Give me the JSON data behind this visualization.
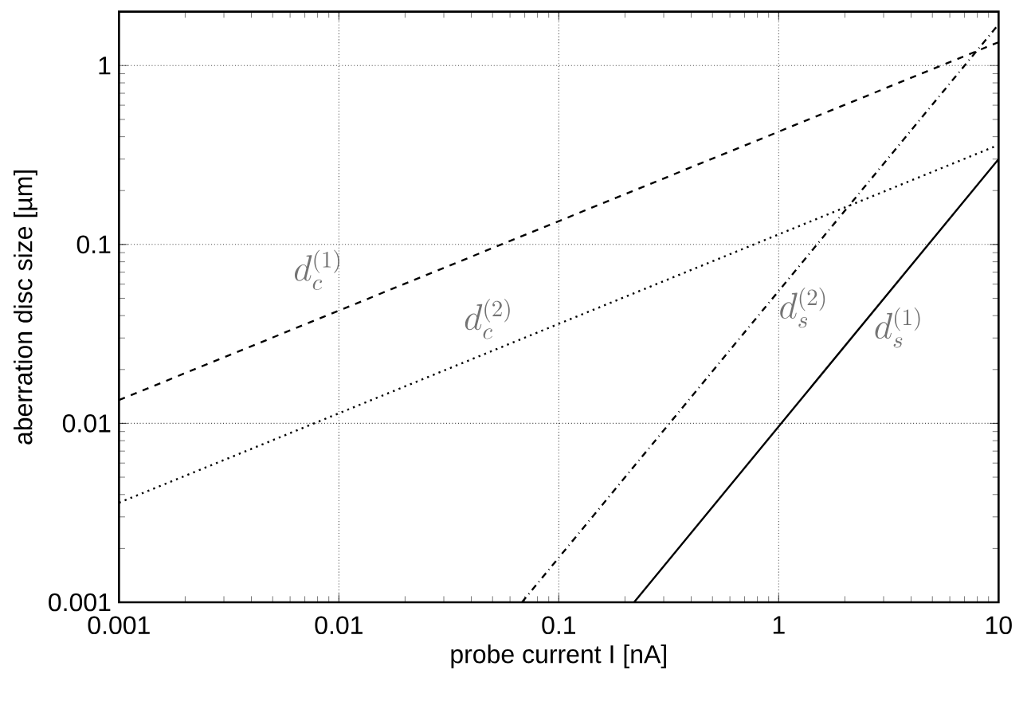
{
  "chart_data": {
    "type": "line",
    "xlabel": "probe current I [nA]",
    "ylabel": "aberration disc size [µm]",
    "log": "xy",
    "xlim": [
      0.001,
      10
    ],
    "ylim": [
      0.001,
      2
    ],
    "xticks": [
      0.001,
      0.01,
      0.1,
      1,
      10
    ],
    "yticks": [
      0.001,
      0.01,
      0.1,
      1
    ],
    "grid": true,
    "marker": "none",
    "series": [
      {
        "name": "d_c^{(1)}",
        "color": "#000000",
        "line_style": "dashed",
        "x": [
          0.001,
          10
        ],
        "values": [
          0.0135,
          1.35
        ]
      },
      {
        "name": "d_c^{(2)}",
        "color": "#000000",
        "line_style": "dotted",
        "x": [
          0.001,
          10
        ],
        "values": [
          0.0036,
          0.36
        ]
      },
      {
        "name": "d_s^{(2)}",
        "color": "#000000",
        "line_style": "dashdot",
        "x": [
          0.068,
          10
        ],
        "values": [
          0.001,
          1.7
        ]
      },
      {
        "name": "d_s^{(1)}",
        "color": "#000000",
        "line_style": "solid",
        "x": [
          0.22,
          10
        ],
        "values": [
          0.001,
          0.3
        ]
      }
    ]
  }
}
